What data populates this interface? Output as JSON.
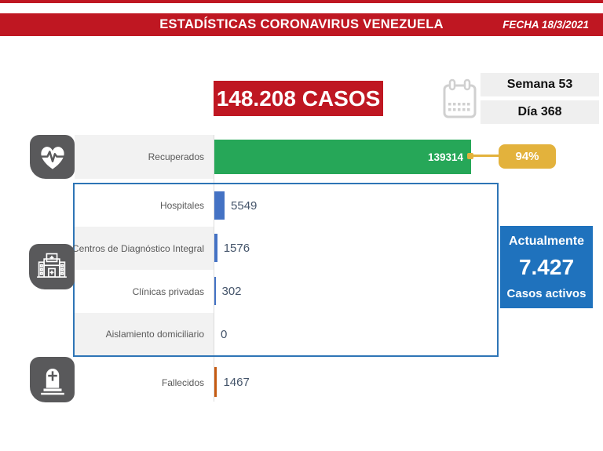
{
  "banner": {
    "title": "ESTADÍSTICAS CORONAVIRUS VENEZUELA",
    "date_label": "FECHA 18/3/2021"
  },
  "summary": {
    "total_cases": "148.208 CASOS",
    "week_label": "Semana 53",
    "day_label": "Día 368"
  },
  "active_box": {
    "title": "Actualmente",
    "value": "7.427",
    "subtitle": "Casos activos"
  },
  "chart_data": {
    "type": "bar",
    "orientation": "horizontal",
    "categories": [
      "Recuperados",
      "Hospitales",
      "Centros de Diagnóstico Integral",
      "Clínicas privadas",
      "Aislamiento domiciliario",
      "Fallecidos"
    ],
    "values": [
      139314,
      5549,
      1576,
      302,
      0,
      1467
    ],
    "value_labels": [
      "139314",
      "5549",
      "1576",
      "302",
      "0",
      "1467"
    ],
    "recovered_percent": "94%",
    "grid": false,
    "legend": "none",
    "series_colors": {
      "recovered": "#26a758",
      "hospitalization": "#4472c4",
      "deaths": "#c55a11"
    }
  },
  "colors": {
    "brand_red": "#bf1722",
    "green": "#26a758",
    "yellow": "#e3b23c",
    "bar_blue": "#4472c4",
    "active_box_blue": "#1f72bd",
    "border_blue": "#2e75b6",
    "orange": "#c55a11",
    "icon_gray": "#59595b"
  },
  "icons": {
    "calendar": "calendar-icon",
    "recovered": "heart-pulse-icon",
    "hospitalization": "hospital-icon",
    "deaths": "tombstone-icon"
  }
}
